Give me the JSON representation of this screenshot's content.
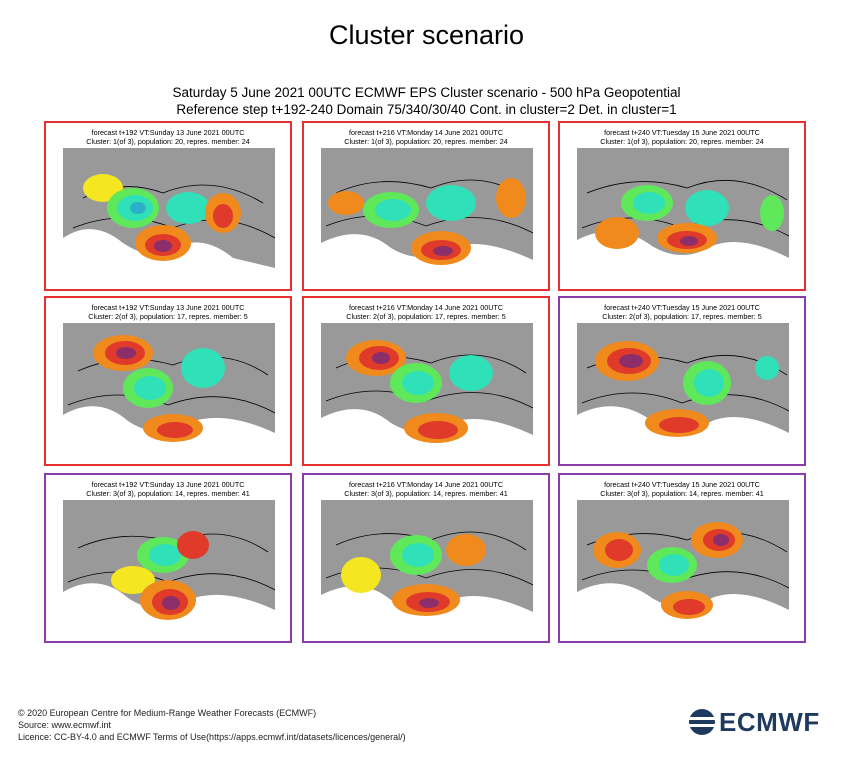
{
  "page_title": "Cluster scenario",
  "subtitle_line1": "Saturday 5 June 2021 00UTC ECMWF EPS Cluster scenario - 500 hPa Geopotential",
  "subtitle_line2": "Reference step t+192-240 Domain 75/340/30/40 Cont. in cluster=2 Det. in cluster=1",
  "panels": [
    {
      "title": "forecast t+192 VT:Sunday 13 June 2021 00UTC",
      "subtitle": "Cluster: 1(of 3), population: 20, repres. member: 24",
      "border": "red"
    },
    {
      "title": "forecast t+216 VT:Monday 14 June 2021 00UTC",
      "subtitle": "Cluster: 1(of 3), population: 20, repres. member: 24",
      "border": "red"
    },
    {
      "title": "forecast t+240 VT:Tuesday 15 June 2021 00UTC",
      "subtitle": "Cluster: 1(of 3), population: 20, repres. member: 24",
      "border": "red"
    },
    {
      "title": "forecast t+192 VT:Sunday 13 June 2021 00UTC",
      "subtitle": "Cluster: 2(of 3), population: 17, repres. member: 5",
      "border": "red"
    },
    {
      "title": "forecast t+216 VT:Monday 14 June 2021 00UTC",
      "subtitle": "Cluster: 2(of 3), population: 17, repres. member: 5",
      "border": "red"
    },
    {
      "title": "forecast t+240 VT:Tuesday 15 June 2021 00UTC",
      "subtitle": "Cluster: 2(of 3), population: 17, repres. member: 5",
      "border": "purple"
    },
    {
      "title": "forecast t+192 VT:Sunday 13 June 2021 00UTC",
      "subtitle": "Cluster: 3(of 3), population: 14, repres. member: 41",
      "border": "purple"
    },
    {
      "title": "forecast t+216 VT:Monday 14 June 2021 00UTC",
      "subtitle": "Cluster: 3(of 3), population: 14, repres. member: 41",
      "border": "purple"
    },
    {
      "title": "forecast t+240 VT:Tuesday 15 June 2021 00UTC",
      "subtitle": "Cluster: 3(of 3), population: 14, repres. member: 41",
      "border": "purple"
    }
  ],
  "footer": {
    "copyright": "© 2020 European Centre for Medium-Range Weather Forecasts (ECMWF)",
    "source": "Source: www.ecmwf.int",
    "licence": "Licence: CC-BY-4.0 and ECMWF Terms of Use(https://apps.ecmwf.int/datasets/licences/general/)"
  },
  "logo_text": "ECMWF",
  "colors": {
    "red_border": "#e83030",
    "purple_border": "#8a3ca8",
    "land": "#999999",
    "positive_strong": "#8b2e6a",
    "positive_mid": "#e03a2a",
    "positive_low": "#f08a1c",
    "positive_weak": "#f4e620",
    "negative_weak": "#5fe85a",
    "negative_mid": "#2fe0b8",
    "negative_strong": "#2ab0c8",
    "logo": "#1f3a5f"
  }
}
